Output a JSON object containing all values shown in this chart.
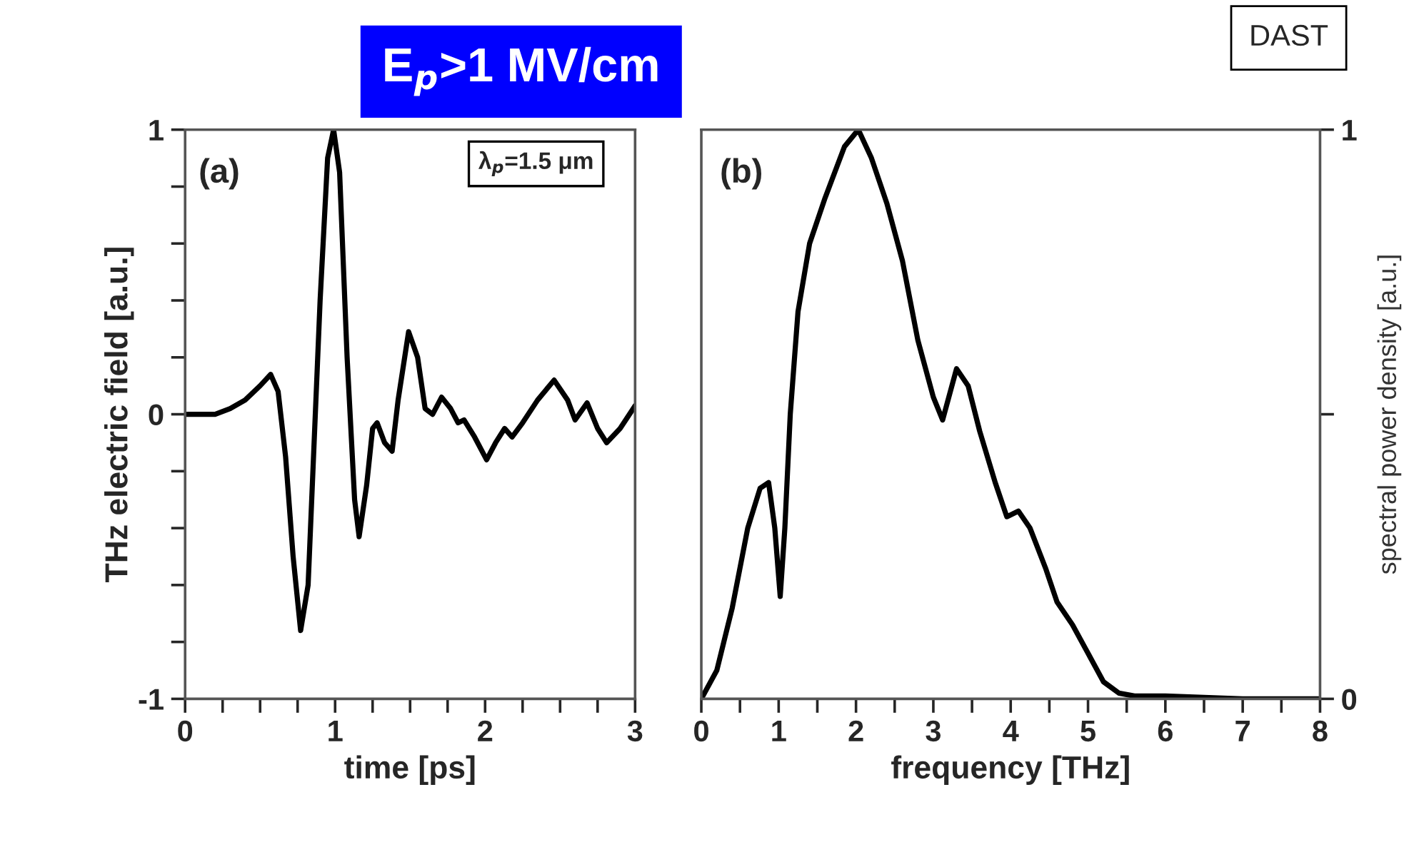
{
  "chart_data": [
    {
      "type": "line",
      "title": "E$_{p}$>1 MV/cm",
      "xlabel": "time [ps]",
      "ylabel": "THz electric field [a.u.]",
      "annotations": [
        "(a)",
        "λ$_{p}$=1.5 μm"
      ],
      "x": [
        0,
        0.2,
        0.3,
        0.4,
        0.5,
        0.57,
        0.62,
        0.67,
        0.72,
        0.77,
        0.82,
        0.86,
        0.9,
        0.95,
        0.99,
        1.03,
        1.08,
        1.13,
        1.16,
        1.21,
        1.25,
        1.28,
        1.33,
        1.38,
        1.42,
        1.49,
        1.55,
        1.6,
        1.65,
        1.71,
        1.77,
        1.82,
        1.86,
        1.93,
        2.01,
        2.07,
        2.13,
        2.18,
        2.25,
        2.35,
        2.46,
        2.55,
        2.6,
        2.68,
        2.75,
        2.81,
        2.9,
        3.0
      ],
      "series": [
        {
          "color": "#000000",
          "values": [
            0,
            0.0,
            0.02,
            0.05,
            0.1,
            0.14,
            0.08,
            -0.15,
            -0.5,
            -0.76,
            -0.6,
            -0.1,
            0.4,
            0.9,
            1.0,
            0.85,
            0.2,
            -0.3,
            -0.43,
            -0.25,
            -0.05,
            -0.03,
            -0.1,
            -0.13,
            0.05,
            0.29,
            0.2,
            0.02,
            0.0,
            0.06,
            0.02,
            -0.03,
            -0.02,
            -0.08,
            -0.16,
            -0.1,
            -0.05,
            -0.08,
            -0.03,
            0.05,
            0.12,
            0.05,
            -0.02,
            0.04,
            -0.05,
            -0.1,
            -0.05,
            0.03
          ]
        }
      ],
      "xlim": [
        0,
        3
      ],
      "ylim": [
        -1,
        1
      ],
      "xticks": [
        0,
        {
          "value": 0.25,
          "label": null
        },
        {
          "value": 0.5,
          "label": null
        },
        {
          "value": 0.75,
          "label": null
        },
        1,
        {
          "value": 1.25,
          "label": null
        },
        {
          "value": 1.5,
          "label": null
        },
        {
          "value": 1.75,
          "label": null
        },
        2,
        {
          "value": 2.25,
          "label": null
        },
        {
          "value": 2.5,
          "label": null
        },
        {
          "value": 2.75,
          "label": null
        },
        3
      ],
      "yticks": [
        -1,
        {
          "value": -0.8,
          "label": null
        },
        {
          "value": -0.6,
          "label": null
        },
        {
          "value": -0.4,
          "label": null
        },
        {
          "value": -0.2,
          "label": null
        },
        0,
        {
          "value": 0.2,
          "label": null
        },
        {
          "value": 0.4,
          "label": null
        },
        {
          "value": 0.6,
          "label": null
        },
        {
          "value": 0.8,
          "label": null
        },
        1
      ]
    },
    {
      "type": "line",
      "xlabel": "frequency [THz]",
      "ylabel": "spectral power density [a.u.]",
      "annotations": [
        "(b)",
        "DAST"
      ],
      "x": [
        0,
        0.2,
        0.4,
        0.6,
        0.76,
        0.87,
        0.95,
        1.02,
        1.08,
        1.15,
        1.25,
        1.4,
        1.6,
        1.85,
        2.03,
        2.2,
        2.4,
        2.6,
        2.8,
        3.0,
        3.12,
        3.3,
        3.45,
        3.6,
        3.8,
        3.95,
        4.1,
        4.25,
        4.45,
        4.6,
        4.8,
        5.0,
        5.2,
        5.4,
        5.6,
        6.0,
        7.0,
        8.0
      ],
      "series": [
        {
          "color": "#000000",
          "values": [
            0,
            0.05,
            0.16,
            0.3,
            0.37,
            0.38,
            0.3,
            0.18,
            0.3,
            0.5,
            0.68,
            0.8,
            0.88,
            0.97,
            1.0,
            0.95,
            0.87,
            0.77,
            0.63,
            0.53,
            0.49,
            0.58,
            0.55,
            0.47,
            0.38,
            0.32,
            0.33,
            0.3,
            0.23,
            0.17,
            0.13,
            0.08,
            0.03,
            0.01,
            0.005,
            0.005,
            0.0,
            0.0
          ]
        }
      ],
      "xlim": [
        0,
        8
      ],
      "ylim": [
        0,
        1
      ],
      "xticks": [
        0,
        {
          "value": 0.5,
          "label": null
        },
        1,
        {
          "value": 1.5,
          "label": null
        },
        2,
        {
          "value": 2.5,
          "label": null
        },
        3,
        {
          "value": 3.5,
          "label": null
        },
        4,
        {
          "value": 4.5,
          "label": null
        },
        5,
        {
          "value": 5.5,
          "label": null
        },
        6,
        {
          "value": 6.5,
          "label": null
        },
        7,
        {
          "value": 7.5,
          "label": null
        },
        8
      ],
      "yticks": [
        0,
        {
          "value": 0.5,
          "label": null
        },
        1
      ]
    }
  ]
}
